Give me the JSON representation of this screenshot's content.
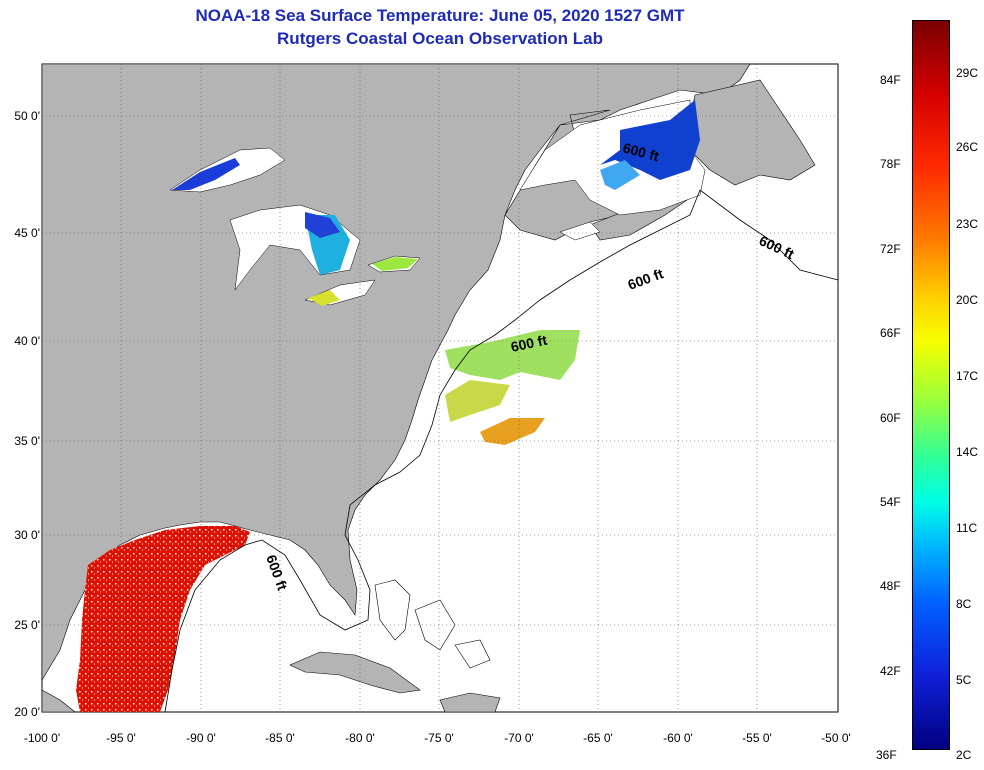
{
  "title": "NOAA-18 Sea Surface Temperature:  June 05, 2020 1527 GMT",
  "subtitle": "Rutgers Coastal Ocean Observation Lab",
  "lon_ticks": [
    "-100 0'",
    "-95 0'",
    "-90 0'",
    "-85 0'",
    "-80 0'",
    "-75 0'",
    "-70 0'",
    "-65 0'",
    "-60 0'",
    "-55 0'",
    "-50 0'"
  ],
  "lat_ticks": [
    "50 0'",
    "45 0'",
    "40 0'",
    "35 0'",
    "30 0'",
    "25 0'",
    "20 0'"
  ],
  "contour_label": "600 ft",
  "colorbar": {
    "fahrenheit": [
      "84F",
      "78F",
      "72F",
      "66F",
      "60F",
      "54F",
      "48F",
      "42F",
      "36F"
    ],
    "celsius": [
      "29C",
      "26C",
      "23C",
      "20C",
      "17C",
      "14C",
      "11C",
      "8C",
      "5C",
      "2C"
    ]
  },
  "colors": {
    "title": "#1f2bb5",
    "land": "#b4b4b4",
    "ocean": "#ffffff"
  }
}
